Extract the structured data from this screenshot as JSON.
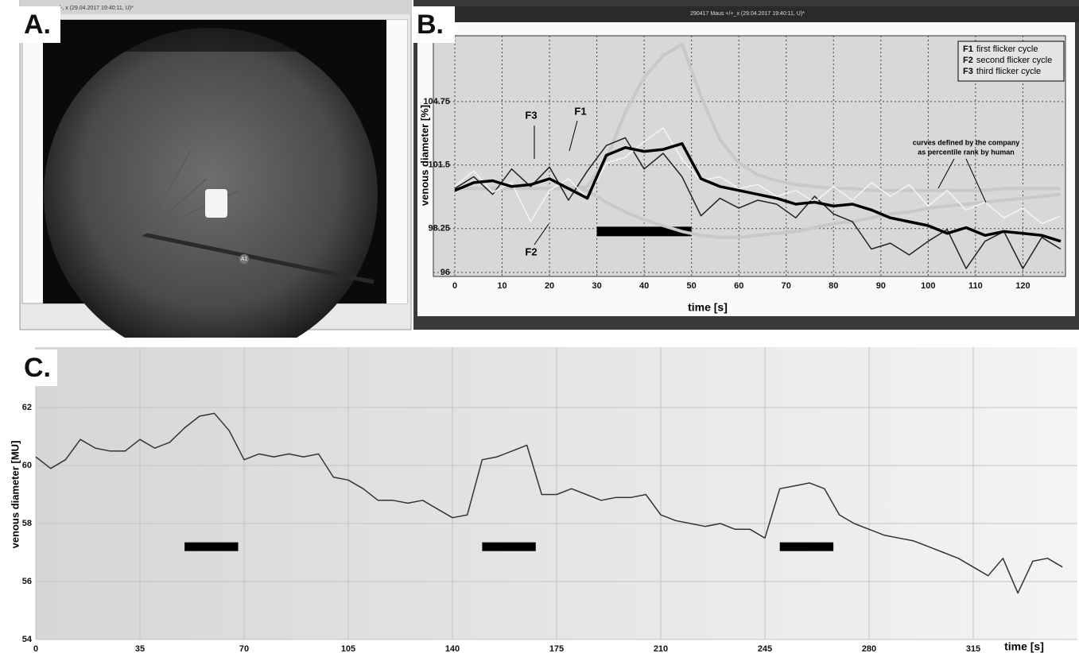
{
  "panel_labels": [
    "A.",
    "B.",
    "C."
  ],
  "window_titles": [
    "+/-, x (29.04.2017 19:40:11, U)*",
    "290417 Maus +/+_x (29.04.2017 19:40:11, U)*"
  ],
  "image_marker": "A1",
  "chart_data": [
    {
      "type": "line",
      "x_label": "time [s]",
      "y_label": "venous diameter [%]",
      "xlim": [
        0,
        129
      ],
      "xticks": [
        0,
        10,
        20,
        30,
        40,
        50,
        60,
        70,
        80,
        90,
        100,
        110,
        120
      ],
      "ylim": [
        96,
        108
      ],
      "yticks": [
        96,
        98.25,
        101.5,
        104.75
      ],
      "grid": true,
      "x": [
        0,
        4,
        8,
        12,
        16,
        20,
        24,
        28,
        32,
        36,
        40,
        44,
        48,
        52,
        56,
        60,
        64,
        68,
        72,
        76,
        80,
        84,
        88,
        92,
        96,
        100,
        104,
        108,
        112,
        116,
        120,
        124,
        128
      ],
      "series": [
        {
          "color": "#c8c8c8",
          "width": 4,
          "values": [
            100.3,
            100.3,
            100.3,
            100.3,
            100.3,
            100.3,
            100.3,
            100.4,
            101.8,
            104.2,
            106.0,
            107.1,
            107.7,
            105.0,
            102.8,
            101.6,
            101.0,
            100.7,
            100.5,
            100.4,
            100.3,
            100.3,
            100.2,
            100.2,
            100.2,
            100.2,
            100.2,
            100.2,
            100.2,
            100.3,
            100.3,
            100.3,
            100.3
          ]
        },
        {
          "color": "#c8c8c8",
          "width": 4,
          "values": [
            100.3,
            100.3,
            100.3,
            100.3,
            100.3,
            100.3,
            100.3,
            100.2,
            99.6,
            99.1,
            98.7,
            98.4,
            98.1,
            97.9,
            97.8,
            97.8,
            97.9,
            98.0,
            98.1,
            98.3,
            98.5,
            98.6,
            98.8,
            99.0,
            99.1,
            99.3,
            99.4,
            99.5,
            99.6,
            99.7,
            99.8,
            99.9,
            100.0
          ]
        },
        {
          "name": "F1",
          "label": "first flicker cycle",
          "color": "#222222",
          "width": 1.5,
          "values": [
            100.3,
            100.9,
            100.0,
            101.3,
            100.4,
            101.4,
            99.7,
            101.2,
            102.5,
            102.9,
            101.3,
            102.1,
            100.9,
            98.9,
            99.8,
            99.3,
            99.7,
            99.5,
            98.8,
            99.9,
            99.0,
            98.6,
            97.2,
            97.5,
            96.9,
            97.6,
            98.2,
            96.2,
            97.6,
            98.1,
            96.2,
            97.8,
            97.2
          ]
        },
        {
          "name": "F2",
          "label": "second flicker cycle",
          "color": "#f4f4f4",
          "width": 1.5,
          "values": [
            100.4,
            101.2,
            100.1,
            100.6,
            98.6,
            100.2,
            100.8,
            99.8,
            101.6,
            101.9,
            102.7,
            103.4,
            101.8,
            100.7,
            100.9,
            100.3,
            100.5,
            99.9,
            100.2,
            99.6,
            100.4,
            99.7,
            100.6,
            99.9,
            100.5,
            99.4,
            100.2,
            99.2,
            99.6,
            98.8,
            99.3,
            98.5,
            98.9
          ]
        },
        {
          "name": "F3",
          "label": "third flicker cycle",
          "color": "#000000",
          "width": 3.5,
          "values": [
            100.2,
            100.6,
            100.7,
            100.4,
            100.5,
            100.8,
            100.3,
            99.8,
            102.0,
            102.4,
            102.2,
            102.3,
            102.6,
            100.8,
            100.4,
            100.2,
            100.0,
            99.8,
            99.5,
            99.6,
            99.4,
            99.5,
            99.2,
            98.8,
            98.6,
            98.4,
            98.0,
            98.3,
            97.9,
            98.1,
            98.0,
            97.9,
            97.6
          ]
        }
      ],
      "annotations": [
        "F3",
        "F1",
        "F2",
        "curves defined by the company",
        "as percentile rank by human"
      ],
      "stimuli": [
        [
          30,
          50
        ]
      ]
    },
    {
      "type": "line",
      "x_label": "time [s]",
      "y_label": "venous diameter [MU]",
      "xlim": [
        0,
        350
      ],
      "xticks": [
        0,
        35,
        70,
        105,
        140,
        175,
        210,
        245,
        280,
        315
      ],
      "ylim": [
        54,
        64
      ],
      "yticks": [
        54,
        56,
        58,
        60,
        62
      ],
      "grid": true,
      "x": [
        0,
        5,
        10,
        15,
        20,
        25,
        30,
        35,
        40,
        45,
        50,
        55,
        60,
        65,
        70,
        75,
        80,
        85,
        90,
        95,
        100,
        105,
        110,
        115,
        120,
        125,
        130,
        135,
        140,
        145,
        150,
        155,
        160,
        165,
        170,
        175,
        180,
        185,
        190,
        195,
        200,
        205,
        210,
        215,
        220,
        225,
        230,
        235,
        240,
        245,
        250,
        255,
        260,
        265,
        270,
        275,
        280,
        285,
        290,
        295,
        300,
        305,
        310,
        315,
        320,
        325,
        330,
        335,
        340,
        345
      ],
      "series": [
        {
          "color": "#333333",
          "width": 1.5,
          "values": [
            60.3,
            59.9,
            60.2,
            60.9,
            60.6,
            60.5,
            60.5,
            60.9,
            60.6,
            60.8,
            61.3,
            61.7,
            61.8,
            61.2,
            60.2,
            60.4,
            60.3,
            60.4,
            60.3,
            60.4,
            59.6,
            59.5,
            59.2,
            58.8,
            58.8,
            58.7,
            58.8,
            58.5,
            58.2,
            58.3,
            60.2,
            60.3,
            60.5,
            60.7,
            59.0,
            59.0,
            59.2,
            59.0,
            58.8,
            58.9,
            58.9,
            59.0,
            58.3,
            58.1,
            58.0,
            57.9,
            58.0,
            57.8,
            57.8,
            57.5,
            59.2,
            59.3,
            59.4,
            59.2,
            58.3,
            58.0,
            57.8,
            57.6,
            57.5,
            57.4,
            57.2,
            57.0,
            56.8,
            56.5,
            56.2,
            56.8,
            55.6,
            56.7,
            56.8,
            56.5
          ]
        }
      ],
      "stimuli": [
        [
          50,
          68
        ],
        [
          150,
          168
        ],
        [
          250,
          268
        ]
      ]
    }
  ]
}
